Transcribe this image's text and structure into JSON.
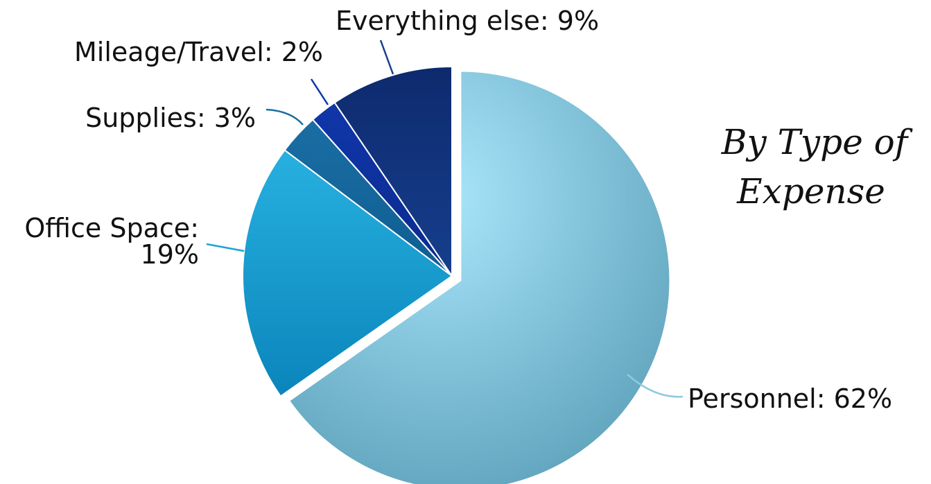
{
  "chart_data": {
    "type": "pie",
    "title_lines": [
      "By Type of",
      "Expense"
    ],
    "slices": [
      {
        "label": "Personnel: 62%",
        "value": 62,
        "exploded": true
      },
      {
        "label": "Office Space: 19%",
        "value": 19,
        "exploded": false
      },
      {
        "label": "Supplies: 3%",
        "value": 3,
        "exploded": false
      },
      {
        "label": "Mileage/Travel: 2%",
        "value": 2,
        "exploded": false
      },
      {
        "label": "Everything else: 9%",
        "value": 9,
        "exploded": false
      }
    ]
  }
}
